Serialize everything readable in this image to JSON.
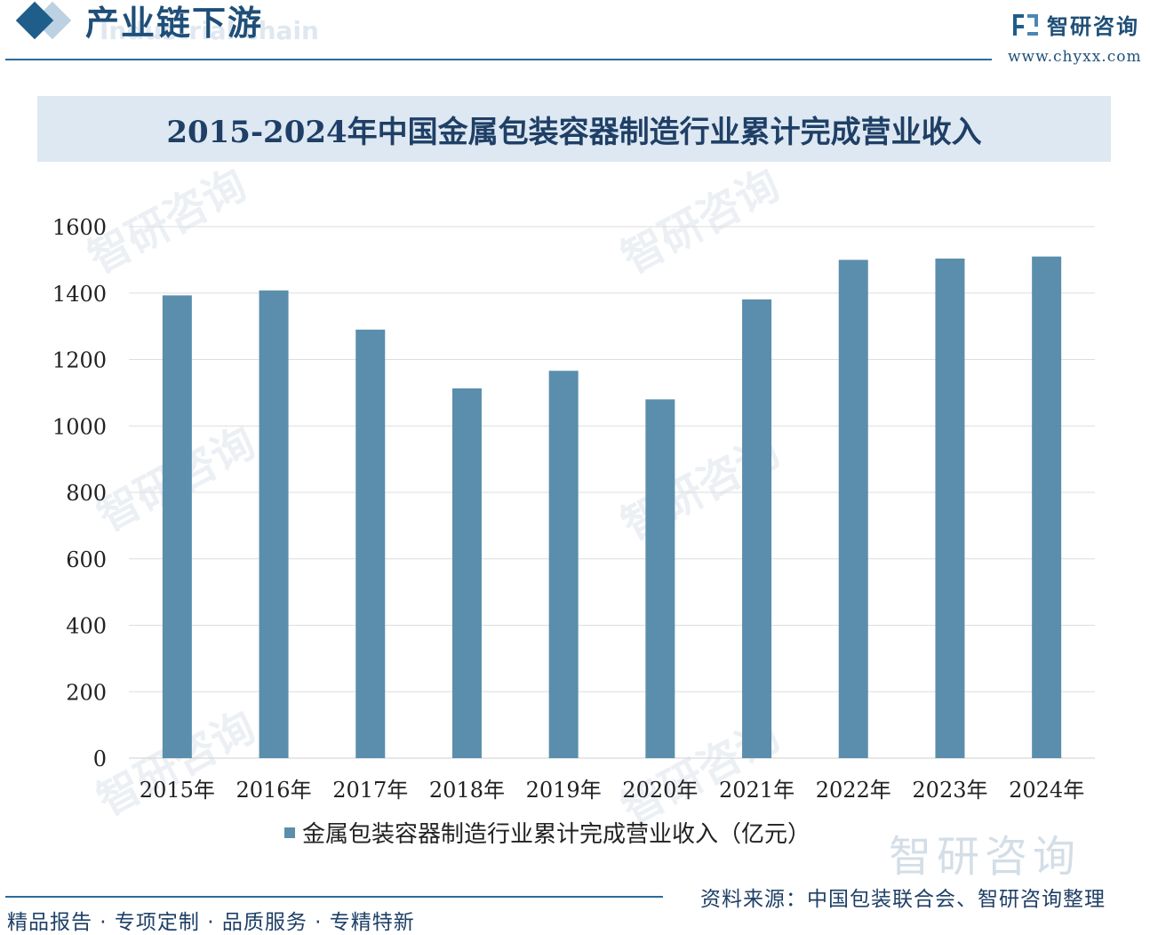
{
  "header": {
    "section_title": "产业链下游",
    "section_subtitle": "Industrial chain",
    "logo_name": "智研咨询",
    "logo_url": "www.chyxx.com"
  },
  "chart_data": {
    "type": "bar",
    "title": "2015-2024年中国金属包装容器制造行业累计完成营业收入",
    "categories": [
      "2015年",
      "2016年",
      "2017年",
      "2018年",
      "2019年",
      "2020年",
      "2021年",
      "2022年",
      "2023年",
      "2024年"
    ],
    "series": [
      {
        "name": "金属包装容器制造行业累计完成营业收入（亿元）",
        "values": [
          1393,
          1408,
          1290,
          1113,
          1166,
          1080,
          1381,
          1500,
          1504,
          1510
        ]
      }
    ],
    "ylim": [
      0,
      1600
    ],
    "yticks": [
      0,
      200,
      400,
      600,
      800,
      1000,
      1200,
      1400,
      1600
    ],
    "grid": true,
    "legend": "bottom",
    "bar_color": "#5a8eac"
  },
  "watermark": {
    "text": "智研咨询"
  },
  "footer": {
    "source": "资料来源：中国包装联合会、智研咨询整理",
    "slogan": "精品报告 · 专项定制 · 品质服务 · 专精特新"
  }
}
